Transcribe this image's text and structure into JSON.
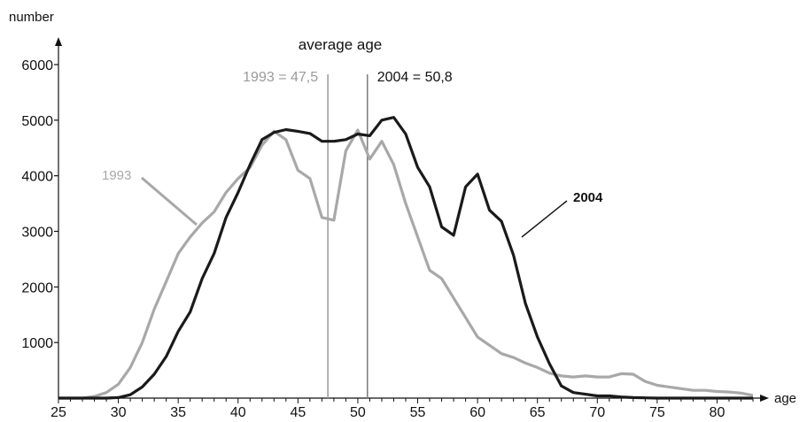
{
  "chart_data": {
    "type": "line",
    "title": "average age",
    "ylabel": "number",
    "xlabel": "age",
    "xlim": [
      25,
      83
    ],
    "ylim": [
      0,
      6000
    ],
    "x_ticks": [
      "25",
      "30",
      "35",
      "40",
      "45",
      "50",
      "55",
      "60",
      "65",
      "70",
      "75",
      "80"
    ],
    "y_ticks": [
      "1000",
      "2000",
      "3000",
      "4000",
      "5000",
      "6000"
    ],
    "average_lines": [
      {
        "label": "1993 = 47,5",
        "x": 47.5,
        "color": "#a0a0a0"
      },
      {
        "label": "2004 = 50,8",
        "x": 50.8,
        "color": "#808080"
      }
    ],
    "series": [
      {
        "name": "1993",
        "color": "#a8a8a8",
        "points": [
          [
            25,
            0
          ],
          [
            26,
            0
          ],
          [
            27,
            0
          ],
          [
            28,
            30
          ],
          [
            29,
            100
          ],
          [
            30,
            250
          ],
          [
            31,
            550
          ],
          [
            32,
            1000
          ],
          [
            33,
            1600
          ],
          [
            34,
            2100
          ],
          [
            35,
            2600
          ],
          [
            36,
            2900
          ],
          [
            37,
            3150
          ],
          [
            38,
            3350
          ],
          [
            39,
            3700
          ],
          [
            40,
            3950
          ],
          [
            41,
            4150
          ],
          [
            42,
            4550
          ],
          [
            43,
            4800
          ],
          [
            44,
            4650
          ],
          [
            45,
            4100
          ],
          [
            46,
            3950
          ],
          [
            47,
            3250
          ],
          [
            48,
            3200
          ],
          [
            49,
            4450
          ],
          [
            50,
            4820
          ],
          [
            51,
            4300
          ],
          [
            52,
            4620
          ],
          [
            53,
            4200
          ],
          [
            54,
            3500
          ],
          [
            55,
            2900
          ],
          [
            56,
            2300
          ],
          [
            57,
            2150
          ],
          [
            58,
            1800
          ],
          [
            59,
            1450
          ],
          [
            60,
            1100
          ],
          [
            61,
            950
          ],
          [
            62,
            800
          ],
          [
            63,
            730
          ],
          [
            64,
            630
          ],
          [
            65,
            550
          ],
          [
            66,
            450
          ],
          [
            67,
            400
          ],
          [
            68,
            380
          ],
          [
            69,
            400
          ],
          [
            70,
            380
          ],
          [
            71,
            380
          ],
          [
            72,
            440
          ],
          [
            73,
            430
          ],
          [
            74,
            300
          ],
          [
            75,
            230
          ],
          [
            76,
            200
          ],
          [
            77,
            170
          ],
          [
            78,
            140
          ],
          [
            79,
            140
          ],
          [
            80,
            120
          ],
          [
            81,
            110
          ],
          [
            82,
            90
          ],
          [
            83,
            50
          ]
        ]
      },
      {
        "name": "2004",
        "color": "#1a1a1a",
        "points": [
          [
            25,
            0
          ],
          [
            26,
            0
          ],
          [
            27,
            0
          ],
          [
            28,
            0
          ],
          [
            29,
            0
          ],
          [
            30,
            10
          ],
          [
            31,
            60
          ],
          [
            32,
            200
          ],
          [
            33,
            430
          ],
          [
            34,
            750
          ],
          [
            35,
            1200
          ],
          [
            36,
            1550
          ],
          [
            37,
            2150
          ],
          [
            38,
            2600
          ],
          [
            39,
            3250
          ],
          [
            40,
            3700
          ],
          [
            41,
            4200
          ],
          [
            42,
            4650
          ],
          [
            43,
            4780
          ],
          [
            44,
            4830
          ],
          [
            45,
            4800
          ],
          [
            46,
            4760
          ],
          [
            47,
            4620
          ],
          [
            48,
            4620
          ],
          [
            49,
            4650
          ],
          [
            50,
            4750
          ],
          [
            51,
            4720
          ],
          [
            52,
            5000
          ],
          [
            53,
            5050
          ],
          [
            54,
            4750
          ],
          [
            55,
            4150
          ],
          [
            56,
            3800
          ],
          [
            57,
            3080
          ],
          [
            58,
            2930
          ],
          [
            59,
            3800
          ],
          [
            60,
            4030
          ],
          [
            61,
            3380
          ],
          [
            62,
            3180
          ],
          [
            63,
            2570
          ],
          [
            64,
            1700
          ],
          [
            65,
            1100
          ],
          [
            66,
            620
          ],
          [
            67,
            220
          ],
          [
            68,
            100
          ],
          [
            69,
            70
          ],
          [
            70,
            40
          ],
          [
            71,
            40
          ],
          [
            72,
            20
          ],
          [
            73,
            10
          ],
          [
            74,
            5
          ],
          [
            75,
            0
          ],
          [
            80,
            0
          ],
          [
            83,
            0
          ]
        ]
      }
    ]
  }
}
